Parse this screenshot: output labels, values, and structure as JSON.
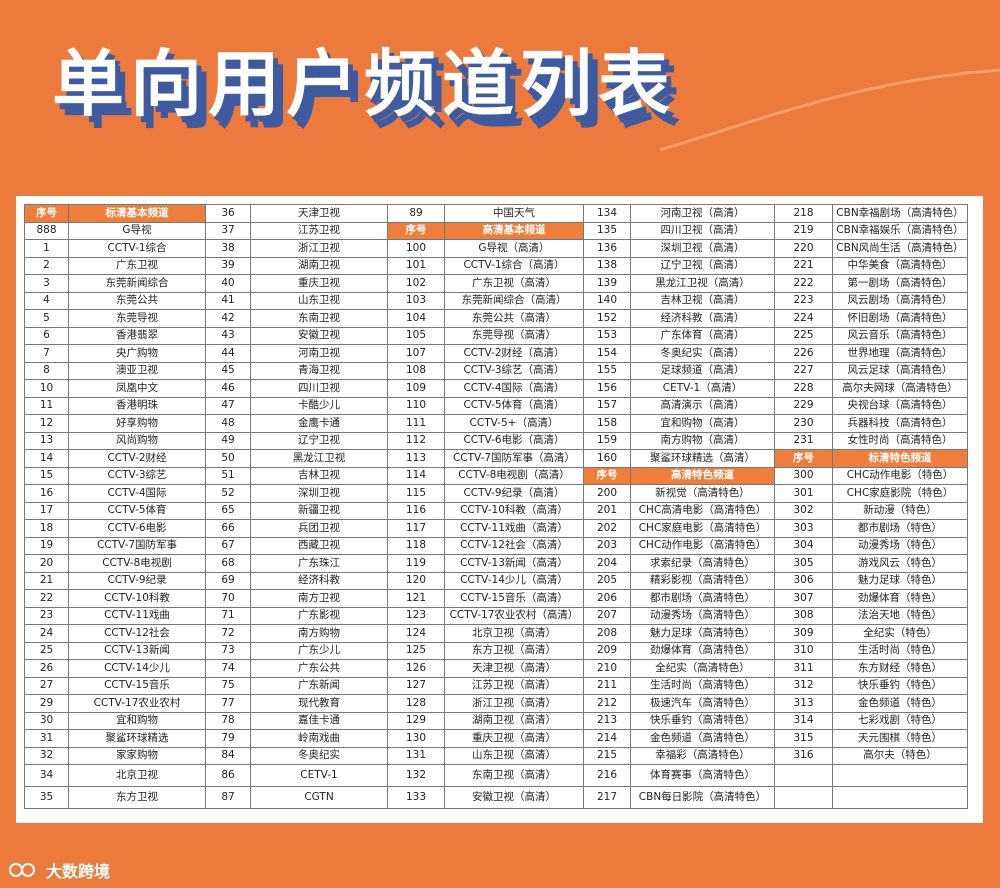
{
  "title": "单向用户频道列表",
  "brand": "大数跨境",
  "colors": {
    "background": "#ec7a3c",
    "header": "#ee7e3a",
    "title_shadow": "#3e5aa0"
  },
  "header_num": "序号",
  "headers": {
    "sd_basic": "标清基本频道",
    "hd_basic": "高清基本频道",
    "hd_special": "高清特色频道",
    "sd_special": "标清特色频道"
  },
  "col1": [
    [
      "888",
      "G导视"
    ],
    [
      "1",
      "CCTV-1综合"
    ],
    [
      "2",
      "广东卫视"
    ],
    [
      "3",
      "东莞新闻综合"
    ],
    [
      "4",
      "东莞公共"
    ],
    [
      "5",
      "东莞导视"
    ],
    [
      "6",
      "香港翡翠"
    ],
    [
      "7",
      "央广购物"
    ],
    [
      "8",
      "澳亚卫视"
    ],
    [
      "10",
      "凤凰中文"
    ],
    [
      "11",
      "香港明珠"
    ],
    [
      "12",
      "好享购物"
    ],
    [
      "13",
      "风尚购物"
    ],
    [
      "14",
      "CCTV-2财经"
    ],
    [
      "15",
      "CCTV-3综艺"
    ],
    [
      "16",
      "CCTV-4国际"
    ],
    [
      "17",
      "CCTV-5体育"
    ],
    [
      "18",
      "CCTV-6电影"
    ],
    [
      "19",
      "CCTV-7国防军事"
    ],
    [
      "20",
      "CCTV-8电视剧"
    ],
    [
      "21",
      "CCTV-9纪录"
    ],
    [
      "22",
      "CCTV-10科教"
    ],
    [
      "23",
      "CCTV-11戏曲"
    ],
    [
      "24",
      "CCTV-12社会"
    ],
    [
      "25",
      "CCTV-13新闻"
    ],
    [
      "26",
      "CCTV-14少儿"
    ],
    [
      "27",
      "CCTV-15音乐"
    ],
    [
      "29",
      "CCTV-17农业农村"
    ],
    [
      "30",
      "宜和购物"
    ],
    [
      "31",
      "聚鲨环球精选"
    ],
    [
      "32",
      "家家购物"
    ],
    [
      "34",
      "北京卫视"
    ],
    [
      "35",
      "东方卫视"
    ]
  ],
  "col2": [
    [
      "36",
      "天津卫视"
    ],
    [
      "37",
      "江苏卫视"
    ],
    [
      "38",
      "浙江卫视"
    ],
    [
      "39",
      "湖南卫视"
    ],
    [
      "40",
      "重庆卫视"
    ],
    [
      "41",
      "山东卫视"
    ],
    [
      "42",
      "东南卫视"
    ],
    [
      "43",
      "安徽卫视"
    ],
    [
      "44",
      "河南卫视"
    ],
    [
      "45",
      "青海卫视"
    ],
    [
      "46",
      "四川卫视"
    ],
    [
      "47",
      "卡酷少儿"
    ],
    [
      "48",
      "金鹰卡通"
    ],
    [
      "49",
      "辽宁卫视"
    ],
    [
      "50",
      "黑龙江卫视"
    ],
    [
      "51",
      "吉林卫视"
    ],
    [
      "52",
      "深圳卫视"
    ],
    [
      "65",
      "新疆卫视"
    ],
    [
      "66",
      "兵团卫视"
    ],
    [
      "67",
      "西藏卫视"
    ],
    [
      "68",
      "广东珠江"
    ],
    [
      "69",
      "经济科教"
    ],
    [
      "70",
      "南方卫视"
    ],
    [
      "71",
      "广东影视"
    ],
    [
      "72",
      "南方购物"
    ],
    [
      "73",
      "广东少儿"
    ],
    [
      "74",
      "广东公共"
    ],
    [
      "75",
      "广东新闻"
    ],
    [
      "77",
      "现代教育"
    ],
    [
      "78",
      "嘉佳卡通"
    ],
    [
      "79",
      "岭南戏曲"
    ],
    [
      "84",
      "冬奥纪实"
    ],
    [
      "86",
      "CETV-1"
    ],
    [
      "87",
      "CGTN"
    ]
  ],
  "col3_top": [
    "89",
    "中国天气"
  ],
  "col3": [
    [
      "100",
      "G导视（高清）"
    ],
    [
      "101",
      "CCTV-1综合（高清）"
    ],
    [
      "102",
      "广东卫视（高清）"
    ],
    [
      "103",
      "东莞新闻综合（高清）"
    ],
    [
      "104",
      "东莞公共（高清）"
    ],
    [
      "105",
      "东莞导视（高清）"
    ],
    [
      "107",
      "CCTV-2财经（高清）"
    ],
    [
      "108",
      "CCTV-3综艺（高清）"
    ],
    [
      "109",
      "CCTV-4国际（高清）"
    ],
    [
      "110",
      "CCTV-5体育（高清）"
    ],
    [
      "111",
      "CCTV-5+（高清）"
    ],
    [
      "112",
      "CCTV-6电影（高清）"
    ],
    [
      "113",
      "CCTV-7国防军事（高清）"
    ],
    [
      "114",
      "CCTV-8电视剧（高清）"
    ],
    [
      "115",
      "CCTV-9纪录（高清）"
    ],
    [
      "116",
      "CCTV-10科教（高清）"
    ],
    [
      "117",
      "CCTV-11戏曲（高清）"
    ],
    [
      "118",
      "CCTV-12社会（高清）"
    ],
    [
      "119",
      "CCTV-13新闻（高清）"
    ],
    [
      "120",
      "CCTV-14少儿（高清）"
    ],
    [
      "121",
      "CCTV-15音乐（高清）"
    ],
    [
      "123",
      "CCTV-17农业农村（高清）"
    ],
    [
      "124",
      "北京卫视（高清）"
    ],
    [
      "125",
      "东方卫视（高清）"
    ],
    [
      "126",
      "天津卫视（高清）"
    ],
    [
      "127",
      "江苏卫视（高清）"
    ],
    [
      "128",
      "浙江卫视（高清）"
    ],
    [
      "129",
      "湖南卫视（高清）"
    ],
    [
      "130",
      "重庆卫视（高清）"
    ],
    [
      "131",
      "山东卫视（高清）"
    ],
    [
      "132",
      "东南卫视（高清）"
    ],
    [
      "133",
      "安徽卫视（高清）"
    ]
  ],
  "col4_a": [
    [
      "134",
      "河南卫视（高清）"
    ],
    [
      "135",
      "四川卫视（高清）"
    ],
    [
      "136",
      "深圳卫视（高清）"
    ],
    [
      "138",
      "辽宁卫视（高清）"
    ],
    [
      "139",
      "黑龙江卫视（高清）"
    ],
    [
      "140",
      "吉林卫视（高清）"
    ],
    [
      "152",
      "经济科教（高清）"
    ],
    [
      "153",
      "广东体育（高清）"
    ],
    [
      "154",
      "冬奥纪实（高清）"
    ],
    [
      "155",
      "足球频道（高清）"
    ],
    [
      "156",
      "CETV-1（高清）"
    ],
    [
      "157",
      "高清演示（高清）"
    ],
    [
      "158",
      "宜和购物（高清）"
    ],
    [
      "159",
      "南方购物（高清）"
    ],
    [
      "160",
      "聚鲨环球精选（高清）"
    ]
  ],
  "col4_b": [
    [
      "200",
      "新视觉（高清特色）"
    ],
    [
      "201",
      "CHC高清电影（高清特色）"
    ],
    [
      "202",
      "CHC家庭电影（高清特色）"
    ],
    [
      "203",
      "CHC动作电影（高清特色）"
    ],
    [
      "204",
      "求索纪录（高清特色）"
    ],
    [
      "205",
      "精彩影视（高清特色）"
    ],
    [
      "206",
      "都市剧场（高清特色）"
    ],
    [
      "207",
      "动漫秀场（高清特色）"
    ],
    [
      "208",
      "魅力足球（高清特色）"
    ],
    [
      "209",
      "劲爆体育（高清特色）"
    ],
    [
      "210",
      "全纪实（高清特色）"
    ],
    [
      "211",
      "生活时尚（高清特色）"
    ],
    [
      "212",
      "极速汽车（高清特色）"
    ],
    [
      "213",
      "快乐垂钓（高清特色）"
    ],
    [
      "214",
      "金色频道（高清特色）"
    ],
    [
      "215",
      "幸福彩（高清特色）"
    ],
    [
      "216",
      "体育赛事（高清特色）"
    ],
    [
      "217",
      "CBN每日影院（高清特色）"
    ]
  ],
  "col5_a": [
    [
      "218",
      "CBN幸福剧场（高清特色）"
    ],
    [
      "219",
      "CBN幸福娱乐（高清特色）"
    ],
    [
      "220",
      "CBN风尚生活（高清特色）"
    ],
    [
      "221",
      "中华美食（高清特色）"
    ],
    [
      "222",
      "第一剧场（高清特色）"
    ],
    [
      "223",
      "风云剧场（高清特色）"
    ],
    [
      "224",
      "怀旧剧场（高清特色）"
    ],
    [
      "225",
      "风云音乐（高清特色）"
    ],
    [
      "226",
      "世界地理（高清特色）"
    ],
    [
      "227",
      "风云足球（高清特色）"
    ],
    [
      "228",
      "高尔夫网球（高清特色）"
    ],
    [
      "229",
      "央视台球（高清特色）"
    ],
    [
      "230",
      "兵器科技（高清特色）"
    ],
    [
      "231",
      "女性时尚（高清特色）"
    ]
  ],
  "col5_b": [
    [
      "300",
      "CHC动作电影（特色）"
    ],
    [
      "301",
      "CHC家庭影院（特色）"
    ],
    [
      "302",
      "新动漫（特色）"
    ],
    [
      "303",
      "都市剧场（特色）"
    ],
    [
      "304",
      "动漫秀场（特色）"
    ],
    [
      "305",
      "游戏风云（特色）"
    ],
    [
      "306",
      "魅力足球（特色）"
    ],
    [
      "307",
      "劲爆体育（特色）"
    ],
    [
      "308",
      "法治天地（特色）"
    ],
    [
      "309",
      "全纪实（特色）"
    ],
    [
      "310",
      "生活时尚（特色）"
    ],
    [
      "311",
      "东方财经（特色）"
    ],
    [
      "312",
      "快乐垂钓（特色）"
    ],
    [
      "313",
      "金色频道（特色）"
    ],
    [
      "314",
      "七彩戏剧（特色）"
    ],
    [
      "315",
      "天元围棋（特色）"
    ],
    [
      "316",
      "高尔夫（特色）"
    ],
    [
      "",
      ""
    ],
    [
      "",
      ""
    ]
  ]
}
